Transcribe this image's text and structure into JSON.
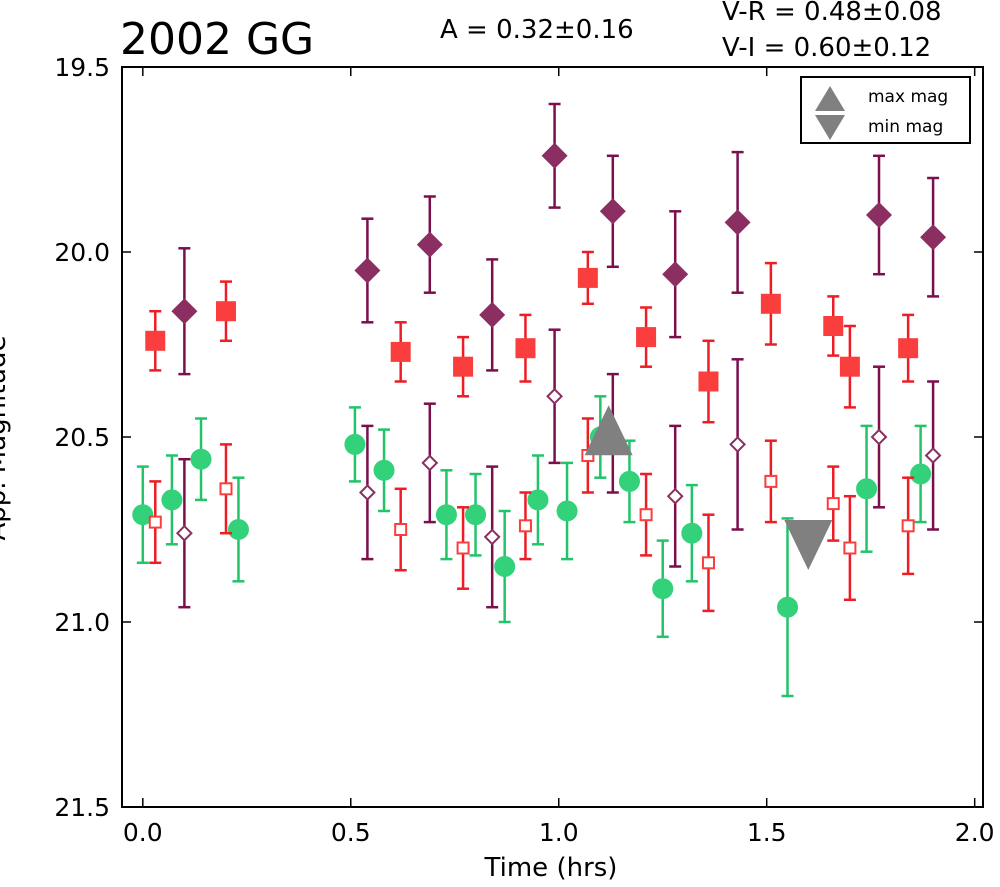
{
  "chart_data": {
    "type": "scatter",
    "title": "2002 GG",
    "amplitude_text": "A  = 0.32±0.16",
    "colors_text": [
      "V-R = 0.48±0.08",
      "V-I  = 0.60±0.12"
    ],
    "xlabel": "Time (hrs)",
    "ylabel": "App. Magnitude",
    "xlim": [
      -0.05,
      2.02
    ],
    "ylim": [
      21.5,
      19.5
    ],
    "y_inverted": true,
    "x_ticks": [
      "0.0",
      "0.5",
      "1.0",
      "1.5",
      "2.0"
    ],
    "y_ticks": [
      "19.5",
      "20.0",
      "20.5",
      "21.0",
      "21.5"
    ],
    "grid": false,
    "legend_position": "top-right",
    "legend": [
      {
        "label": "max mag",
        "symbol": "triangle-up",
        "color": "#808080"
      },
      {
        "label": "min mag",
        "symbol": "triangle-down",
        "color": "#808080"
      }
    ],
    "series": [
      {
        "marker": "circle",
        "filled": true,
        "color": "#33d17a",
        "errcolor": "#22c46a",
        "points": [
          [
            0.0,
            20.71,
            0.13
          ],
          [
            0.07,
            20.67,
            0.12
          ],
          [
            0.14,
            20.56,
            0.11
          ],
          [
            0.23,
            20.75,
            0.14
          ],
          [
            0.51,
            20.52,
            0.1
          ],
          [
            0.58,
            20.59,
            0.11
          ],
          [
            0.73,
            20.71,
            0.12
          ],
          [
            0.8,
            20.71,
            0.11
          ],
          [
            0.87,
            20.85,
            0.15
          ],
          [
            0.95,
            20.67,
            0.12
          ],
          [
            1.02,
            20.7,
            0.13
          ],
          [
            1.1,
            20.5,
            0.11
          ],
          [
            1.17,
            20.62,
            0.11
          ],
          [
            1.25,
            20.91,
            0.13
          ],
          [
            1.32,
            20.76,
            0.13
          ],
          [
            1.55,
            20.96,
            0.24
          ],
          [
            1.74,
            20.64,
            0.17
          ],
          [
            1.87,
            20.6,
            0.13
          ]
        ]
      },
      {
        "marker": "square",
        "filled": true,
        "color": "#fa3e3e",
        "errcolor": "#ee1c24",
        "points": [
          [
            0.03,
            20.24,
            0.08
          ],
          [
            0.2,
            20.16,
            0.08
          ],
          [
            0.62,
            20.27,
            0.08
          ],
          [
            0.77,
            20.31,
            0.08
          ],
          [
            0.92,
            20.26,
            0.09
          ],
          [
            1.07,
            20.07,
            0.07
          ],
          [
            1.21,
            20.23,
            0.08
          ],
          [
            1.36,
            20.35,
            0.11
          ],
          [
            1.51,
            20.14,
            0.11
          ],
          [
            1.66,
            20.2,
            0.08
          ],
          [
            1.7,
            20.31,
            0.11
          ],
          [
            1.84,
            20.26,
            0.09
          ]
        ]
      },
      {
        "marker": "square",
        "filled": false,
        "color": "#fa3e3e",
        "errcolor": "#ee1c24",
        "points": [
          [
            0.03,
            20.73,
            0.11
          ],
          [
            0.2,
            20.64,
            0.12
          ],
          [
            0.62,
            20.75,
            0.11
          ],
          [
            0.77,
            20.8,
            0.11
          ],
          [
            0.92,
            20.74,
            0.09
          ],
          [
            1.07,
            20.55,
            0.1
          ],
          [
            1.21,
            20.71,
            0.11
          ],
          [
            1.36,
            20.84,
            0.13
          ],
          [
            1.51,
            20.62,
            0.11
          ],
          [
            1.66,
            20.68,
            0.1
          ],
          [
            1.7,
            20.8,
            0.14
          ],
          [
            1.84,
            20.74,
            0.13
          ]
        ]
      },
      {
        "marker": "diamond",
        "filled": true,
        "color": "#8b2e61",
        "errcolor": "#7a0f4c",
        "points": [
          [
            0.1,
            20.16,
            0.17
          ],
          [
            0.54,
            20.05,
            0.14
          ],
          [
            0.69,
            19.98,
            0.13
          ],
          [
            0.84,
            20.17,
            0.15
          ],
          [
            0.99,
            19.74,
            0.14
          ],
          [
            1.13,
            19.89,
            0.15
          ],
          [
            1.28,
            20.06,
            0.17
          ],
          [
            1.43,
            19.92,
            0.19
          ],
          [
            1.77,
            19.9,
            0.16
          ],
          [
            1.9,
            19.96,
            0.16
          ]
        ]
      },
      {
        "marker": "diamond",
        "filled": false,
        "color": "#8b2e61",
        "errcolor": "#7a0f4c",
        "points": [
          [
            0.1,
            20.76,
            0.2
          ],
          [
            0.54,
            20.65,
            0.18
          ],
          [
            0.69,
            20.57,
            0.16
          ],
          [
            0.84,
            20.77,
            0.19
          ],
          [
            0.99,
            20.39,
            0.18
          ],
          [
            1.13,
            20.49,
            0.16
          ],
          [
            1.28,
            20.66,
            0.19
          ],
          [
            1.43,
            20.52,
            0.23
          ],
          [
            1.77,
            20.5,
            0.19
          ],
          [
            1.9,
            20.55,
            0.2
          ]
        ]
      }
    ],
    "markers": [
      {
        "symbol": "triangle-up",
        "x": 1.12,
        "y": 20.49,
        "color": "#808080"
      },
      {
        "symbol": "triangle-down",
        "x": 1.6,
        "y": 20.8,
        "color": "#808080"
      }
    ]
  }
}
